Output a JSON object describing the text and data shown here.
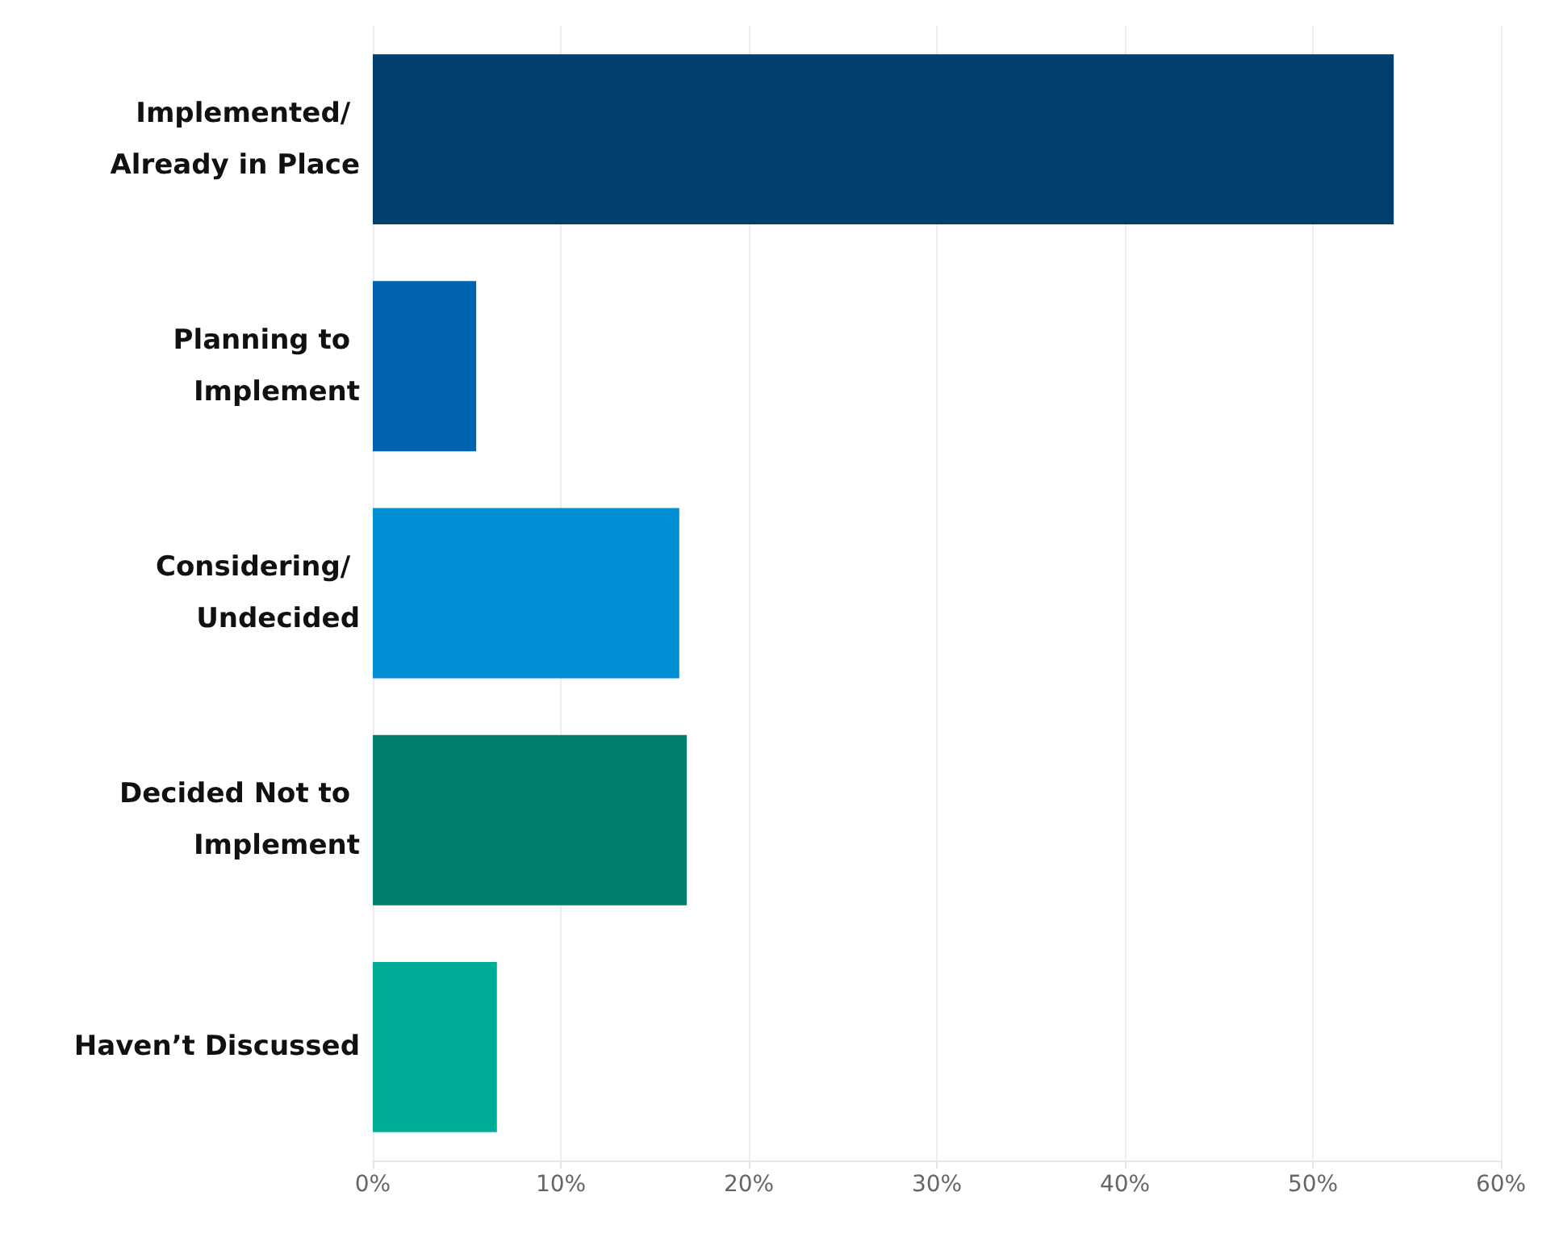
{
  "chart_data": {
    "type": "bar",
    "orientation": "horizontal",
    "categories": [
      "Implemented/ Already in Place",
      "Planning to Implement",
      "Considering/ Undecided",
      "Decided Not to Implement",
      "Haven’t Discussed"
    ],
    "values": [
      54.3,
      5.5,
      16.3,
      16.7,
      6.6
    ],
    "colors": [
      "#003f6e",
      "#0063b0",
      "#008fd5",
      "#007f6e",
      "#00ad98"
    ],
    "xlim": [
      0,
      60
    ],
    "xticks": [
      {
        "value": 0,
        "label": "0%"
      },
      {
        "value": 10,
        "label": "10%"
      },
      {
        "value": 20,
        "label": "20%"
      },
      {
        "value": 30,
        "label": "30%"
      },
      {
        "value": 40,
        "label": "40%"
      },
      {
        "value": 50,
        "label": "50%"
      },
      {
        "value": 60,
        "label": "60%"
      }
    ],
    "grid": "x"
  }
}
